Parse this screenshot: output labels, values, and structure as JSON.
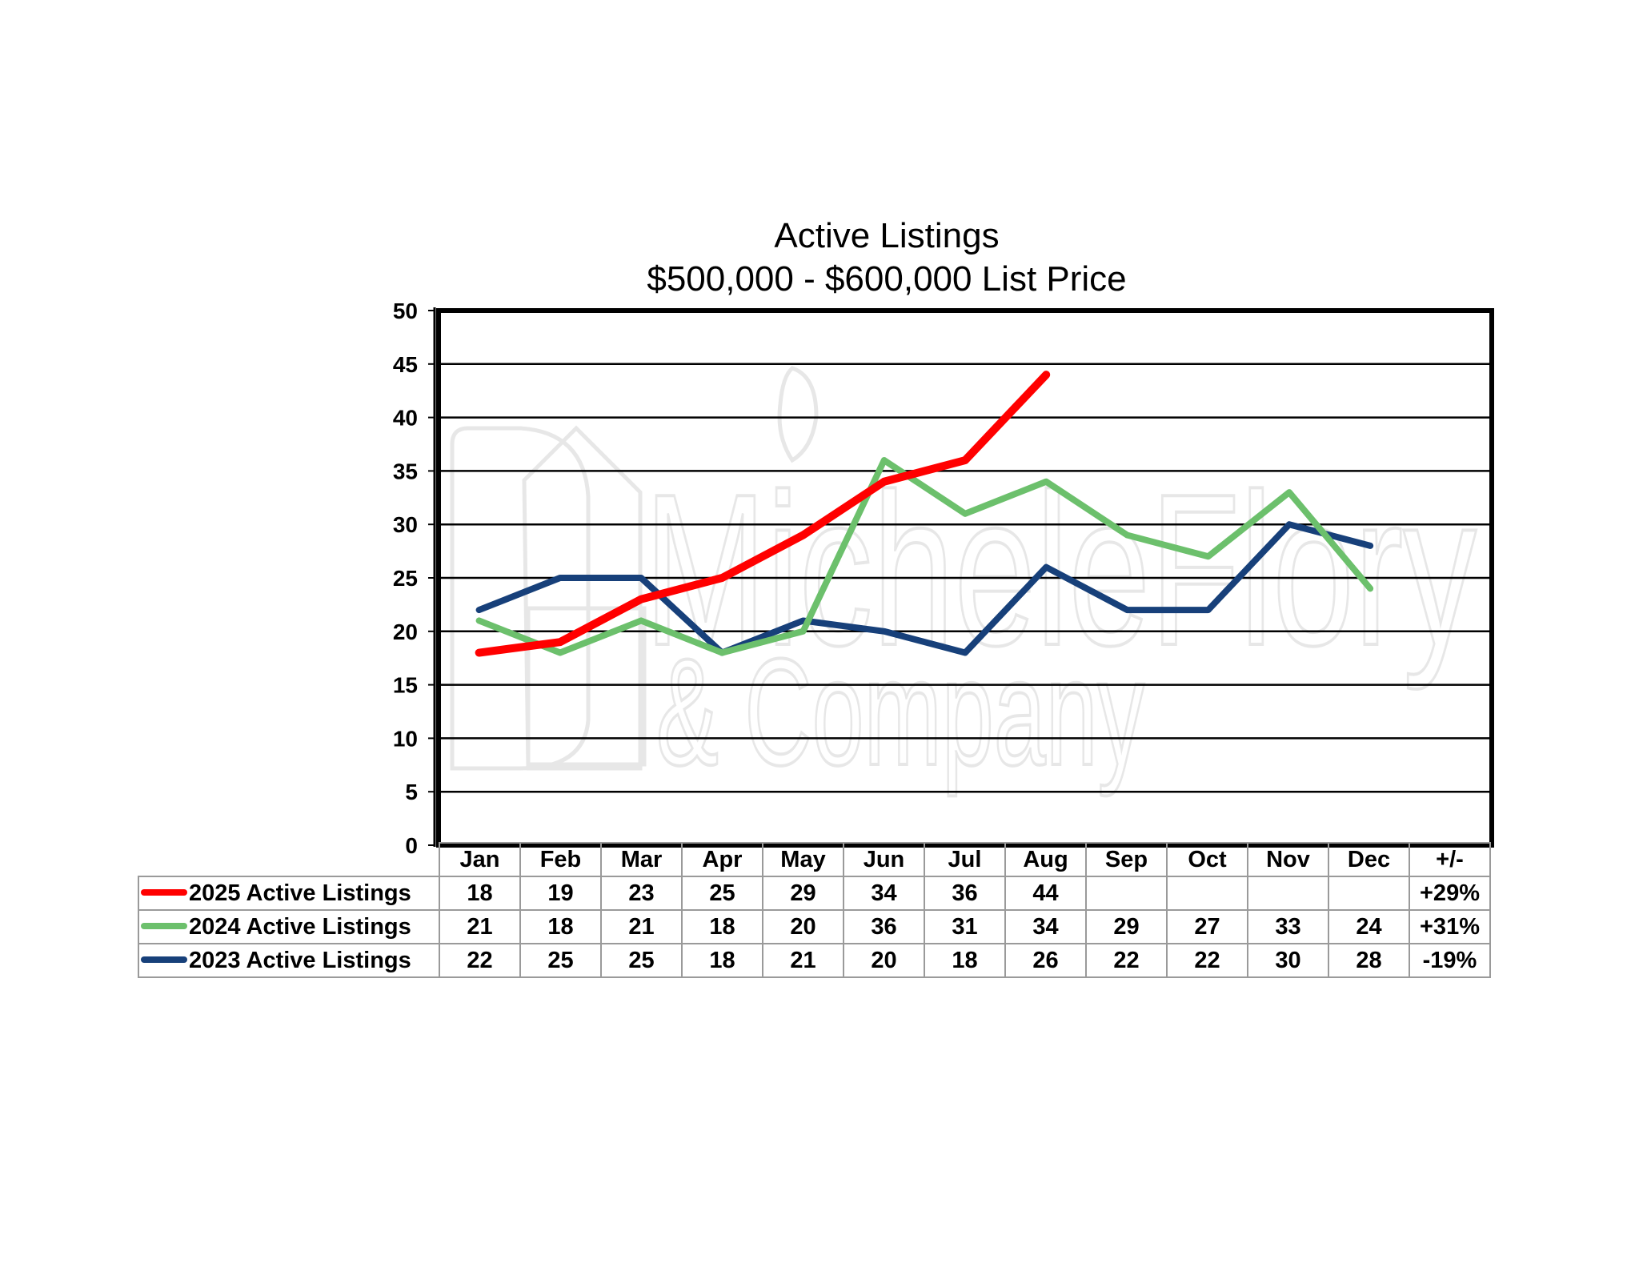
{
  "chart_data": {
    "type": "line",
    "title": "Active Listings",
    "subtitle": "$500,000 - $600,000 List Price",
    "categories": [
      "Jan",
      "Feb",
      "Mar",
      "Apr",
      "May",
      "Jun",
      "Jul",
      "Aug",
      "Sep",
      "Oct",
      "Nov",
      "Dec"
    ],
    "change_header": "+/-",
    "yticks": [
      "0",
      "5",
      "10",
      "15",
      "20",
      "25",
      "30",
      "35",
      "40",
      "45",
      "50"
    ],
    "ylim": [
      0,
      50
    ],
    "ytick_step": 5,
    "grid": true,
    "legend_placement": "data-table",
    "series": [
      {
        "name": "2025 Active Listings",
        "color": "#ff0000",
        "values": [
          18,
          19,
          23,
          25,
          29,
          34,
          36,
          44,
          null,
          null,
          null,
          null
        ],
        "change": "+29%"
      },
      {
        "name": "2024 Active Listings",
        "color": "#6cc06c",
        "values": [
          21,
          18,
          21,
          18,
          20,
          36,
          31,
          34,
          29,
          27,
          33,
          24
        ],
        "change": "+31%"
      },
      {
        "name": "2023 Active Listings",
        "color": "#17407a",
        "values": [
          22,
          25,
          25,
          18,
          21,
          20,
          18,
          26,
          22,
          22,
          30,
          28
        ],
        "change": "-19%"
      }
    ]
  },
  "watermark": {
    "line1": "MicheleFlory",
    "line2": "& Company",
    "icon": "house-logo-icon"
  }
}
